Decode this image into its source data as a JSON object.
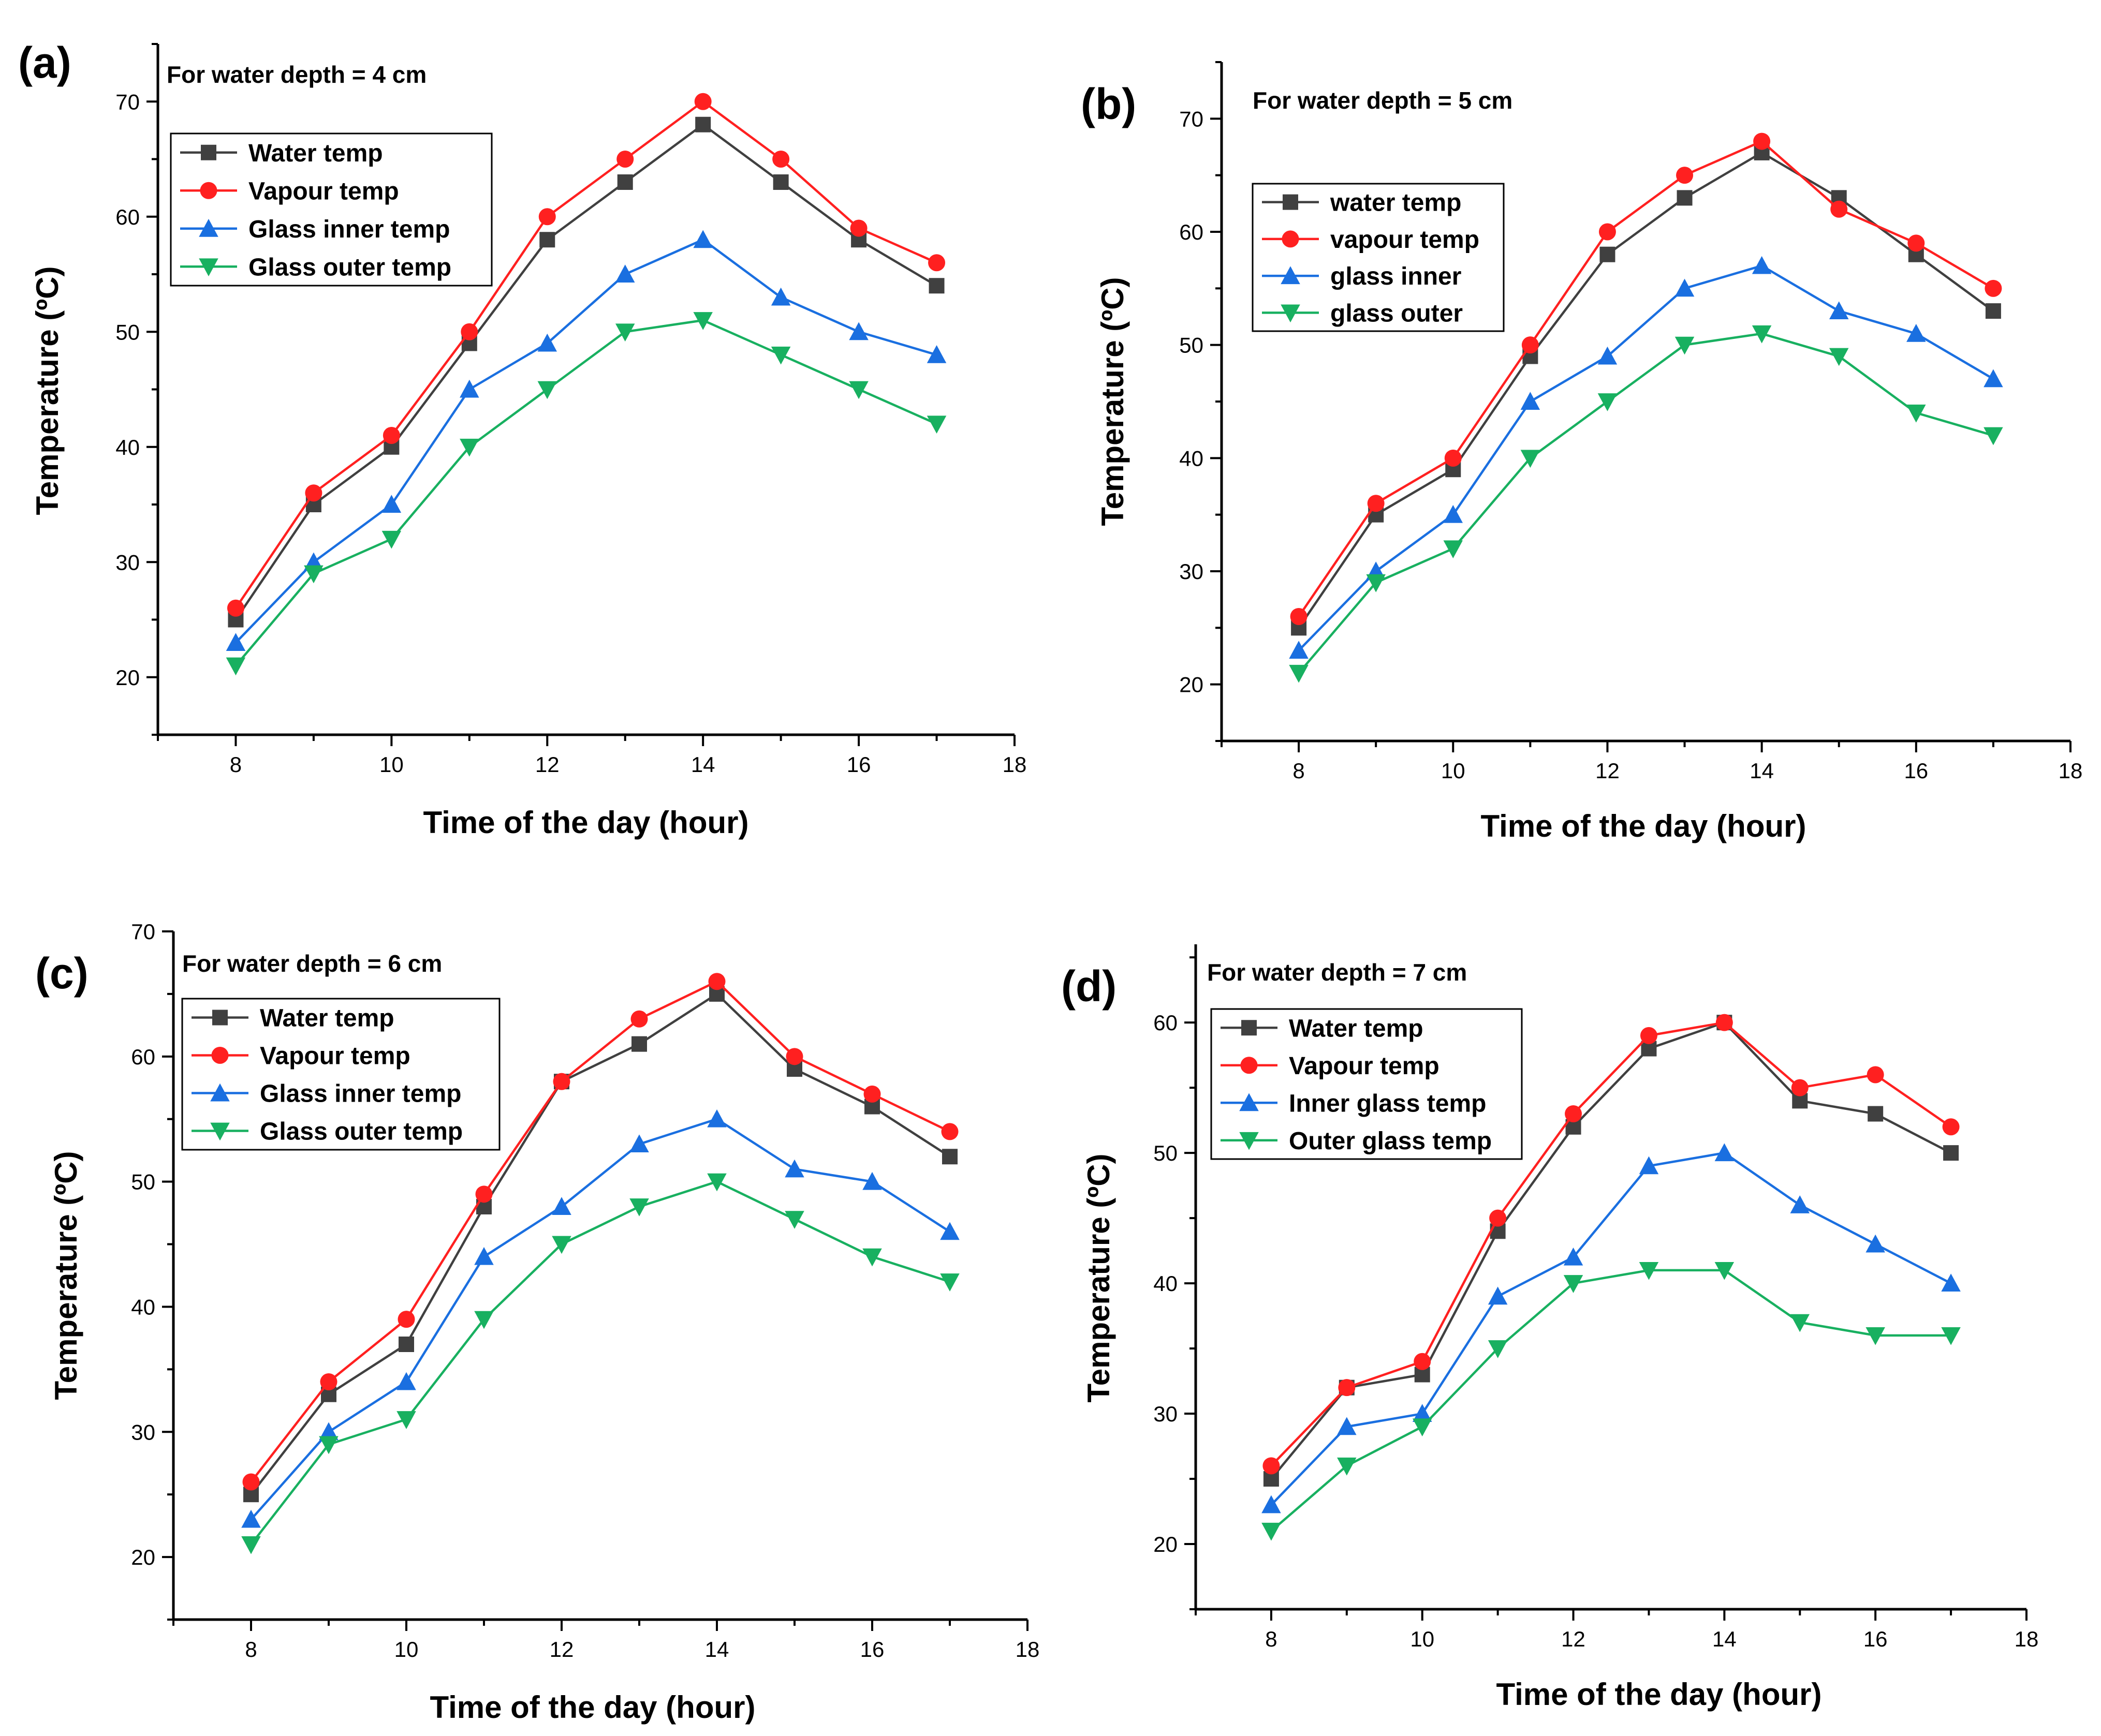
{
  "colors": {
    "water": "#404040",
    "vapour": "#ff2020",
    "inner": "#1a6fe0",
    "outer": "#18b060",
    "axis": "#000000",
    "background": "#ffffff"
  },
  "chart_data": [
    {
      "type": "line",
      "panel_label": "(a)",
      "title": "For water depth = 4 cm",
      "xlabel": "Time of the day (hour)",
      "ylabel": "Temperature (ºC)",
      "xlim": [
        7,
        18
      ],
      "ylim": [
        15,
        75
      ],
      "xticks": [
        8,
        10,
        12,
        14,
        16,
        18
      ],
      "yticks": [
        20,
        30,
        40,
        50,
        60,
        70
      ],
      "x": [
        8,
        9,
        10,
        11,
        12,
        13,
        14,
        15,
        16,
        17
      ],
      "series": [
        {
          "name": "Water temp",
          "key": "water",
          "marker": "square",
          "values": [
            25,
            35,
            40,
            49,
            58,
            63,
            68,
            63,
            58,
            54
          ]
        },
        {
          "name": "Vapour temp",
          "key": "vapour",
          "marker": "circle",
          "values": [
            26,
            36,
            41,
            50,
            60,
            65,
            70,
            65,
            59,
            56
          ]
        },
        {
          "name": "Glass inner temp",
          "key": "inner",
          "marker": "triangle-up",
          "values": [
            23,
            30,
            35,
            45,
            49,
            55,
            58,
            53,
            50,
            48
          ]
        },
        {
          "name": "Glass outer temp",
          "key": "outer",
          "marker": "triangle-down",
          "values": [
            21,
            29,
            32,
            40,
            45,
            50,
            51,
            48,
            45,
            42
          ]
        }
      ]
    },
    {
      "type": "line",
      "panel_label": "(b)",
      "title": "For water depth = 5 cm",
      "xlabel": "Time of the day (hour)",
      "ylabel": "Temperature (ºC)",
      "xlim": [
        7,
        18
      ],
      "ylim": [
        15,
        75
      ],
      "xticks": [
        8,
        10,
        12,
        14,
        16,
        18
      ],
      "yticks": [
        20,
        30,
        40,
        50,
        60,
        70
      ],
      "x": [
        8,
        9,
        10,
        11,
        12,
        13,
        14,
        15,
        16,
        17
      ],
      "series": [
        {
          "name": "water temp",
          "key": "water",
          "marker": "square",
          "values": [
            25,
            35,
            39,
            49,
            58,
            63,
            67,
            63,
            58,
            53
          ]
        },
        {
          "name": "vapour temp",
          "key": "vapour",
          "marker": "circle",
          "values": [
            26,
            36,
            40,
            50,
            60,
            65,
            68,
            62,
            59,
            55
          ]
        },
        {
          "name": "glass inner",
          "key": "inner",
          "marker": "triangle-up",
          "values": [
            23,
            30,
            35,
            45,
            49,
            55,
            57,
            53,
            51,
            47
          ]
        },
        {
          "name": "glass outer",
          "key": "outer",
          "marker": "triangle-down",
          "values": [
            21,
            29,
            32,
            40,
            45,
            50,
            51,
            49,
            44,
            42
          ]
        }
      ]
    },
    {
      "type": "line",
      "panel_label": "(c)",
      "title": "For water depth = 6 cm",
      "xlabel": "Time of the day (hour)",
      "ylabel": "Temperature (ºC)",
      "xlim": [
        7,
        18
      ],
      "ylim": [
        15,
        70
      ],
      "xticks": [
        8,
        10,
        12,
        14,
        16,
        18
      ],
      "yticks": [
        20,
        30,
        40,
        50,
        60,
        70
      ],
      "x": [
        8,
        9,
        10,
        11,
        12,
        13,
        14,
        15,
        16,
        17
      ],
      "series": [
        {
          "name": "Water temp",
          "key": "water",
          "marker": "square",
          "values": [
            25,
            33,
            37,
            48,
            58,
            61,
            65,
            59,
            56,
            52
          ]
        },
        {
          "name": "Vapour temp",
          "key": "vapour",
          "marker": "circle",
          "values": [
            26,
            34,
            39,
            49,
            58,
            63,
            66,
            60,
            57,
            54
          ]
        },
        {
          "name": "Glass inner temp",
          "key": "inner",
          "marker": "triangle-up",
          "values": [
            23,
            30,
            34,
            44,
            48,
            53,
            55,
            51,
            50,
            46
          ]
        },
        {
          "name": "Glass outer temp",
          "key": "outer",
          "marker": "triangle-down",
          "values": [
            21,
            29,
            31,
            39,
            45,
            48,
            50,
            47,
            44,
            42
          ]
        }
      ]
    },
    {
      "type": "line",
      "panel_label": "(d)",
      "title": "For water depth = 7 cm",
      "xlabel": "Time of the day (hour)",
      "ylabel": "Temperature (ºC)",
      "xlim": [
        7,
        18
      ],
      "ylim": [
        15,
        66
      ],
      "xticks": [
        8,
        10,
        12,
        14,
        16,
        18
      ],
      "yticks": [
        20,
        30,
        40,
        50,
        60
      ],
      "x": [
        8,
        9,
        10,
        11,
        12,
        13,
        14,
        15,
        16,
        17
      ],
      "series": [
        {
          "name": "Water temp",
          "key": "water",
          "marker": "square",
          "values": [
            25,
            32,
            33,
            44,
            52,
            58,
            60,
            54,
            53,
            50
          ]
        },
        {
          "name": "Vapour temp",
          "key": "vapour",
          "marker": "circle",
          "values": [
            26,
            32,
            34,
            45,
            53,
            59,
            60,
            55,
            56,
            52
          ]
        },
        {
          "name": "Inner glass temp",
          "key": "inner",
          "marker": "triangle-up",
          "values": [
            23,
            29,
            30,
            39,
            42,
            49,
            50,
            46,
            43,
            40
          ]
        },
        {
          "name": "Outer glass temp",
          "key": "outer",
          "marker": "triangle-down",
          "values": [
            21,
            26,
            29,
            35,
            40,
            41,
            41,
            37,
            36,
            36
          ]
        }
      ]
    }
  ]
}
